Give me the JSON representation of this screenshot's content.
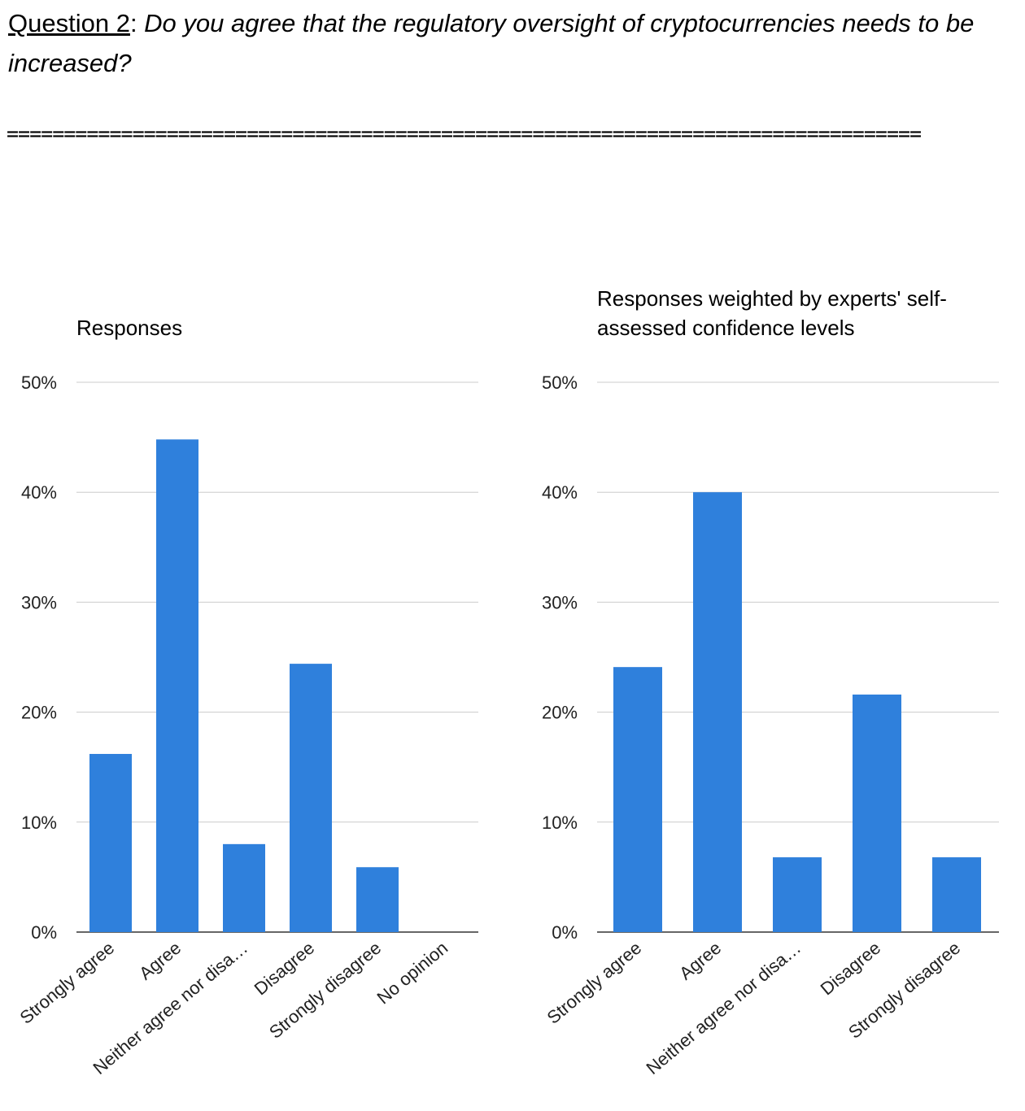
{
  "question": {
    "label": "Question 2",
    "separator": ": ",
    "text": "Do you agree that the regulatory oversight of cryptocurrencies needs to be increased?"
  },
  "divider": "================================================================================",
  "colors": {
    "bar": "#2f80dc",
    "grid": "#cccccc",
    "axis": "#333333"
  },
  "chart_data": [
    {
      "type": "bar",
      "title": [
        "Responses"
      ],
      "categories": [
        "Strongly agree",
        "Agree",
        "Neither agree nor disa…",
        "Disagree",
        "Strongly disagree",
        "No opinion"
      ],
      "values": [
        16.2,
        44.8,
        8.0,
        24.4,
        5.9,
        0
      ],
      "ylim": [
        0,
        50
      ],
      "yticks": [
        0,
        10,
        20,
        30,
        40,
        50
      ],
      "ytick_labels": [
        "0%",
        "10%",
        "20%",
        "30%",
        "40%",
        "50%"
      ],
      "xlabel": "",
      "ylabel": "",
      "grid": true,
      "legend": "none"
    },
    {
      "type": "bar",
      "title": [
        "Responses weighted by experts' self-",
        "assessed confidence levels"
      ],
      "categories": [
        "Strongly agree",
        "Agree",
        "Neither agree nor disa…",
        "Disagree",
        "Strongly disagree"
      ],
      "values": [
        24.1,
        40.0,
        6.8,
        21.6,
        6.8
      ],
      "ylim": [
        0,
        50
      ],
      "yticks": [
        0,
        10,
        20,
        30,
        40,
        50
      ],
      "ytick_labels": [
        "0%",
        "10%",
        "20%",
        "30%",
        "40%",
        "50%"
      ],
      "xlabel": "",
      "ylabel": "",
      "grid": true,
      "legend": "none"
    }
  ]
}
